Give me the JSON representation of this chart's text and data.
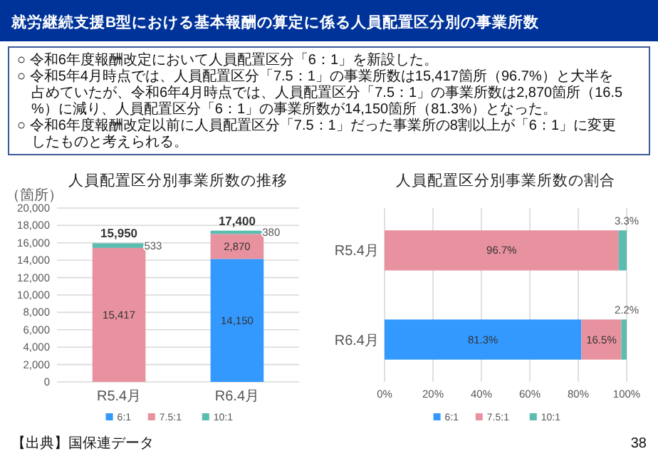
{
  "chart_data": [
    {
      "type": "other",
      "title": "就労継続支援B型における基本報酬の算定に係る人員配置区分別の事業所数",
      "annotations": [
        "○ 令和6年度報酬改定において人員配置区分「6：1」を新設した。",
        "○ 令和5年4月時点では、人員配置区分「7.5：1」の事業所数は15,417箇所（96.7%）と大半を占めていたが、令和6年4月時点では、人員配置区分「7.5：1」の事業所数は2,870箇所（16.5%）に減り、人員配置区分「6：1」の事業所数が14,150箇所（81.3%）となった。",
        "○ 令和6年度報酬改定以前に人員配置区分「7.5：1」だった事業所の8割以上が「6：1」に変更したものと考えられる。",
        "【出典】国保連データ",
        "38"
      ]
    },
    {
      "type": "bar",
      "title": "人員配置区分別事業所数の推移",
      "ylabel": "（箇所）",
      "categories": [
        "R5.4月",
        "R6.4月"
      ],
      "stacked": true,
      "ylim": [
        0,
        20000
      ],
      "yticks": [
        0,
        {
          "value": 2000,
          "label": "2,000"
        },
        {
          "value": 4000,
          "label": "4,000"
        },
        {
          "value": 6000,
          "label": "6,000"
        },
        {
          "value": 8000,
          "label": "8,000"
        },
        {
          "value": 10000,
          "label": "10,000"
        },
        {
          "value": 12000,
          "label": "12,000"
        },
        {
          "value": 14000,
          "label": "14,000"
        },
        {
          "value": 16000,
          "label": "16,000"
        },
        {
          "value": 18000,
          "label": "18,000"
        },
        {
          "value": 20000,
          "label": "20,000"
        }
      ],
      "grid": "y",
      "legend": "bottom",
      "totals": [
        "15,950",
        "17,400"
      ],
      "series": [
        {
          "name": "6:1",
          "color": "#3399ff",
          "values": [
            0,
            14150
          ],
          "value_labels": [
            null,
            "14,150"
          ]
        },
        {
          "name": "7.5:1",
          "color": "#e8929f",
          "values": [
            15417,
            2870
          ],
          "value_labels": [
            "15,417",
            "2,870"
          ]
        },
        {
          "name": "10:1",
          "color": "#5bbcb0",
          "values": [
            533,
            380
          ],
          "value_labels": [
            "533",
            "380"
          ]
        }
      ]
    },
    {
      "type": "bar",
      "title": "人員配置区分別事業所数の割合",
      "orientation": "horizontal",
      "categories": [
        "R5.4月",
        "R6.4月"
      ],
      "stacked": true,
      "xlim": [
        0,
        100
      ],
      "xticks": [
        {
          "value": 0,
          "label": "0%"
        },
        {
          "value": 20,
          "label": "20%"
        },
        {
          "value": 40,
          "label": "40%"
        },
        {
          "value": 60,
          "label": "60%"
        },
        {
          "value": 80,
          "label": "80%"
        },
        {
          "value": 100,
          "label": "100%"
        }
      ],
      "grid": "x",
      "legend": "bottom",
      "series": [
        {
          "name": "6:1",
          "color": "#3399ff",
          "values": [
            0,
            81.3
          ],
          "value_labels": [
            null,
            "81.3%"
          ]
        },
        {
          "name": "7.5:1",
          "color": "#e8929f",
          "values": [
            96.7,
            16.5
          ],
          "value_labels": [
            "96.7%",
            "16.5%"
          ]
        },
        {
          "name": "10:1",
          "color": "#5bbcb0",
          "values": [
            3.3,
            2.2
          ],
          "value_labels": [
            "3.3%",
            "2.2%"
          ]
        }
      ]
    }
  ]
}
